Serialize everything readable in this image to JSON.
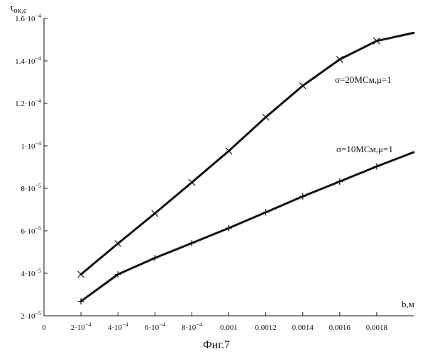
{
  "chart_data": {
    "type": "line",
    "caption": "Фиг.7",
    "ylabel": "τок,с",
    "ylabel_main": "τ",
    "ylabel_sub": "ок,с",
    "xlabel": "b,м",
    "xlim": [
      0,
      0.002
    ],
    "ylim": [
      2e-05,
      0.00016
    ],
    "grid": false,
    "x_ticks": [
      {
        "value": 0,
        "label": "0"
      },
      {
        "value": 0.0002,
        "label": "2·10",
        "exp": "−4"
      },
      {
        "value": 0.0004,
        "label": "4·10",
        "exp": "−4"
      },
      {
        "value": 0.0006,
        "label": "6·10",
        "exp": "−4"
      },
      {
        "value": 0.0008,
        "label": "8·10",
        "exp": "−4"
      },
      {
        "value": 0.001,
        "label": "0.001"
      },
      {
        "value": 0.0012,
        "label": "0.0012"
      },
      {
        "value": 0.0014,
        "label": "0.0014"
      },
      {
        "value": 0.0016,
        "label": "0.0016"
      },
      {
        "value": 0.0018,
        "label": "0.0018"
      }
    ],
    "y_ticks": [
      {
        "value": 2e-05,
        "label": "2·10",
        "exp": "−5"
      },
      {
        "value": 4e-05,
        "label": "4·10",
        "exp": "−5"
      },
      {
        "value": 6e-05,
        "label": "6·10",
        "exp": "−5"
      },
      {
        "value": 8e-05,
        "label": "8·10",
        "exp": "−5"
      },
      {
        "value": 0.0001,
        "label": "1·10",
        "exp": "−4"
      },
      {
        "value": 0.00012,
        "label": "1.2·10",
        "exp": "−4"
      },
      {
        "value": 0.00014,
        "label": "1.4·10",
        "exp": "−4"
      },
      {
        "value": 0.00016,
        "label": "1.6·10",
        "exp": "−4"
      }
    ],
    "series": [
      {
        "name": "σ=20МСм,μ=1",
        "marker": "x",
        "color": "#111111",
        "x": [
          0.0002,
          0.0004,
          0.0006,
          0.0008,
          0.001,
          0.0012,
          0.0014,
          0.0016,
          0.0018,
          0.002
        ],
        "y": [
          3.95e-05,
          5.4e-05,
          6.82e-05,
          8.28e-05,
          9.76e-05,
          0.0001135,
          0.0001283,
          0.0001407,
          0.0001494,
          0.0001532
        ]
      },
      {
        "name": "σ=10МСм,μ=1",
        "marker": "+",
        "color": "#111111",
        "x": [
          0.0002,
          0.0004,
          0.0006,
          0.0008,
          0.001,
          0.0012,
          0.0014,
          0.0016,
          0.0018,
          0.002
        ],
        "y": [
          2.68e-05,
          3.95e-05,
          4.72e-05,
          5.42e-05,
          6.13e-05,
          6.87e-05,
          7.62e-05,
          8.32e-05,
          9.03e-05,
          9.7e-05
        ]
      }
    ]
  }
}
